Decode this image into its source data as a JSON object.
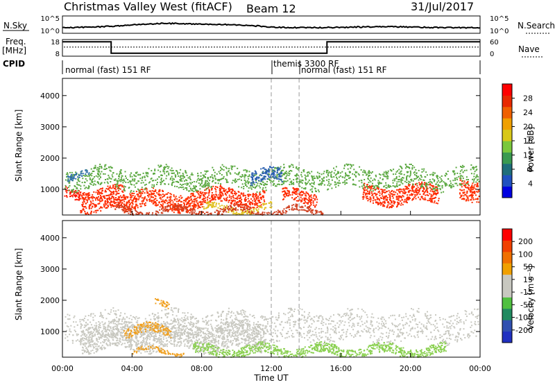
{
  "header": {
    "station": "Christmas Valley West (fitACF)",
    "beam": "Beam 12",
    "date": "31/Jul/2017"
  },
  "noise_panel": {
    "left_label": "N.Sky",
    "left_ticks": [
      "10^5",
      "10^0"
    ],
    "right_label": "N.Search",
    "right_ticks": [
      "10^5",
      "10^0"
    ]
  },
  "freq_panel": {
    "left_label_1": "Freq.",
    "left_label_2": "[MHz]",
    "left_ticks": [
      "18",
      "8"
    ],
    "right_label": "Nave",
    "right_ticks": [
      "60",
      "0"
    ],
    "freq_steps": [
      [
        0,
        2.8,
        17
      ],
      [
        2.8,
        15.2,
        9.5
      ],
      [
        15.2,
        24,
        17
      ]
    ],
    "nave_level": 0.55
  },
  "cpid": {
    "label": "CPID",
    "modes": [
      {
        "text": "normal (fast) 151 RF",
        "start_h": 0
      },
      {
        "text": "themis 3300 RF",
        "start_h": 12
      },
      {
        "text": "normal (fast) 151 RF",
        "start_h": 13.6
      }
    ]
  },
  "chart_data": [
    {
      "type": "heatmap",
      "panel": "power",
      "ylabel": "Slant Range [km]",
      "yticks": [
        "4000",
        "3000",
        "2000",
        "1000"
      ],
      "ylim": [
        180,
        4550
      ],
      "xlim": [
        0,
        24
      ],
      "colorbar": {
        "label": "Power [dB]",
        "ticks": [
          "28",
          "24",
          "20",
          "16",
          "12",
          "8",
          "4"
        ],
        "colors": [
          "#0000e0",
          "#2050c0",
          "#1f6e7a",
          "#3a9a50",
          "#7ac83c",
          "#d8c818",
          "#f0a000",
          "#f06000",
          "#e82800",
          "#ff0000"
        ]
      },
      "bands": [
        {
          "color": "#ff1800",
          "t0": 0.1,
          "t1": 1.0,
          "r_top": 1120,
          "r_bot": 780
        },
        {
          "color": "#ff2a00",
          "t0": 1.0,
          "t1": 3.5,
          "r_top": 1050,
          "r_bot": 330
        },
        {
          "color": "#ff3000",
          "t0": 3.5,
          "t1": 8.0,
          "r_top": 950,
          "r_bot": 380
        },
        {
          "color": "#ff2a00",
          "t0": 8.0,
          "t1": 11.6,
          "r_top": 1020,
          "r_bot": 520
        },
        {
          "color": "#ff2a00",
          "t0": 12.6,
          "t1": 14.6,
          "r_top": 960,
          "r_bot": 560
        },
        {
          "color": "#ff2a00",
          "t0": 17.2,
          "t1": 21.6,
          "r_top": 1120,
          "r_bot": 560
        },
        {
          "color": "#ff3000",
          "t0": 22.8,
          "t1": 23.9,
          "r_top": 1350,
          "r_bot": 700
        },
        {
          "color": "#5aa840",
          "t0": 0.1,
          "t1": 23.9,
          "r_top": 1700,
          "r_bot": 1050
        },
        {
          "color": "#2f6fa8",
          "t0": 0.2,
          "t1": 1.5,
          "r_top": 1600,
          "r_bot": 1400
        },
        {
          "color": "#2a5fb0",
          "t0": 10.8,
          "t1": 12.6,
          "r_top": 1620,
          "r_bot": 1200
        },
        {
          "color": "#e0c020",
          "t0": 8.0,
          "t1": 12.0,
          "r_top": 500,
          "r_bot": 300
        },
        {
          "color": "#d04020",
          "t0": 3.0,
          "t1": 15.0,
          "r_top": 420,
          "r_bot": 220
        }
      ]
    },
    {
      "type": "heatmap",
      "panel": "velocity",
      "ylabel": "Slant Range [km]",
      "yticks": [
        "4000",
        "3000",
        "2000",
        "1000"
      ],
      "ylim": [
        180,
        4550
      ],
      "xlim": [
        0,
        24
      ],
      "xticks": [
        "00:00",
        "04:00",
        "08:00",
        "12:00",
        "16:00",
        "20:00",
        "00:00"
      ],
      "xlabel": "Time UT",
      "colorbar": {
        "label": "Velocity [m s⁻¹]",
        "ticks": [
          "200",
          "100",
          "50",
          "15",
          "-15",
          "-50",
          "-100",
          "-200"
        ],
        "colors": [
          "#2030c0",
          "#3050b0",
          "#208a60",
          "#50c040",
          "#c8c8c0",
          "#c8c8c0",
          "#f0a000",
          "#f07000",
          "#f04000",
          "#ff0000"
        ]
      },
      "bands": [
        {
          "color": "#c8c8c0",
          "t0": 0.1,
          "t1": 23.9,
          "r_top": 1650,
          "r_bot": 700
        },
        {
          "color": "#c8c8c0",
          "t0": 1.0,
          "t1": 11.6,
          "r_top": 1300,
          "r_bot": 420
        },
        {
          "color": "#f0a020",
          "t0": 3.5,
          "t1": 6.2,
          "r_top": 1200,
          "r_bot": 900
        },
        {
          "color": "#f0a020",
          "t0": 4.0,
          "t1": 7.0,
          "r_top": 450,
          "r_bot": 300
        },
        {
          "color": "#8ad050",
          "t0": 7.5,
          "t1": 22.0,
          "r_top": 560,
          "r_bot": 240
        },
        {
          "color": "#f0a020",
          "t0": 5.3,
          "t1": 6.1,
          "r_top": 1950,
          "r_bot": 1750
        }
      ]
    }
  ]
}
